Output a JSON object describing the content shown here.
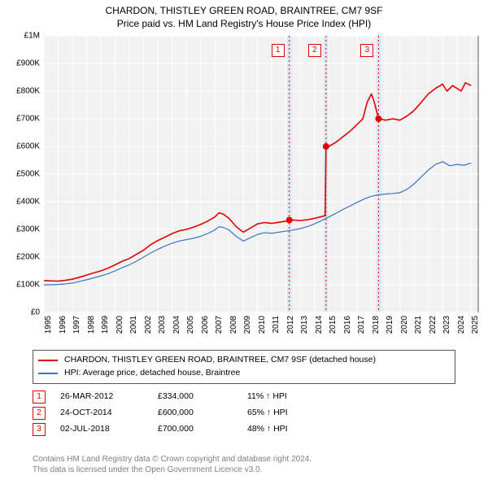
{
  "title_line1": "CHARDON, THISTLEY GREEN ROAD, BRAINTREE, CM7 9SF",
  "title_line2": "Price paid vs. HM Land Registry's House Price Index (HPI)",
  "chart": {
    "type": "line",
    "background_color": "#f2f2f2",
    "grid_color": "#ffffff",
    "plot_border_color": "#555555",
    "x_min_year": 1995,
    "x_max_year": 2025.5,
    "y_min": 0,
    "y_max": 1000000,
    "y_ticks": [
      {
        "v": 0,
        "label": "£0"
      },
      {
        "v": 100000,
        "label": "£100K"
      },
      {
        "v": 200000,
        "label": "£200K"
      },
      {
        "v": 300000,
        "label": "£300K"
      },
      {
        "v": 400000,
        "label": "£400K"
      },
      {
        "v": 500000,
        "label": "£500K"
      },
      {
        "v": 600000,
        "label": "£600K"
      },
      {
        "v": 700000,
        "label": "£700K"
      },
      {
        "v": 800000,
        "label": "£800K"
      },
      {
        "v": 900000,
        "label": "£900K"
      },
      {
        "v": 1000000,
        "label": "£1M"
      }
    ],
    "x_ticks": [
      1995,
      1996,
      1997,
      1998,
      1999,
      2000,
      2001,
      2002,
      2003,
      2004,
      2005,
      2006,
      2007,
      2008,
      2009,
      2010,
      2011,
      2012,
      2013,
      2014,
      2015,
      2016,
      2017,
      2018,
      2019,
      2020,
      2021,
      2022,
      2023,
      2024,
      2025
    ],
    "bands": [
      {
        "from": 2012.07,
        "to": 2012.4,
        "color": "#dbe7f3"
      },
      {
        "from": 2014.64,
        "to": 2014.97,
        "color": "#dbe7f3"
      },
      {
        "from": 2018.34,
        "to": 2018.67,
        "color": "#dbe7f3"
      }
    ],
    "vertical_dotted": [
      {
        "x": 2012.23,
        "color": "#e00000"
      },
      {
        "x": 2014.81,
        "color": "#e00000"
      },
      {
        "x": 2018.5,
        "color": "#e00000"
      }
    ],
    "markers": [
      {
        "n": "1",
        "x": 2012.23,
        "y": 334000
      },
      {
        "n": "2",
        "x": 2014.81,
        "y": 600000
      },
      {
        "n": "3",
        "x": 2018.5,
        "y": 700000
      }
    ],
    "marker_labels_top": [
      {
        "n": "1",
        "x": 2012.23
      },
      {
        "n": "2",
        "x": 2014.81
      },
      {
        "n": "3",
        "x": 2018.5
      }
    ],
    "series": [
      {
        "name": "CHARDON, THISTLEY GREEN ROAD, BRAINTREE, CM7 9SF (detached house)",
        "color": "#e00000",
        "width": 1.6,
        "points": [
          [
            1995.0,
            115000
          ],
          [
            1995.5,
            114000
          ],
          [
            1996.0,
            113000
          ],
          [
            1996.5,
            116000
          ],
          [
            1997.0,
            120000
          ],
          [
            1997.5,
            127000
          ],
          [
            1998.0,
            135000
          ],
          [
            1998.5,
            143000
          ],
          [
            1999.0,
            150000
          ],
          [
            1999.5,
            160000
          ],
          [
            2000.0,
            172000
          ],
          [
            2000.5,
            185000
          ],
          [
            2001.0,
            195000
          ],
          [
            2001.5,
            210000
          ],
          [
            2002.0,
            225000
          ],
          [
            2002.5,
            245000
          ],
          [
            2003.0,
            260000
          ],
          [
            2003.5,
            272000
          ],
          [
            2004.0,
            285000
          ],
          [
            2004.5,
            295000
          ],
          [
            2005.0,
            300000
          ],
          [
            2005.5,
            308000
          ],
          [
            2006.0,
            318000
          ],
          [
            2006.5,
            330000
          ],
          [
            2007.0,
            345000
          ],
          [
            2007.3,
            360000
          ],
          [
            2007.6,
            355000
          ],
          [
            2008.0,
            340000
          ],
          [
            2008.5,
            310000
          ],
          [
            2009.0,
            290000
          ],
          [
            2009.5,
            305000
          ],
          [
            2010.0,
            320000
          ],
          [
            2010.5,
            325000
          ],
          [
            2011.0,
            322000
          ],
          [
            2011.5,
            326000
          ],
          [
            2012.0,
            330000
          ],
          [
            2012.23,
            334000
          ],
          [
            2012.5,
            334000
          ],
          [
            2013.0,
            332000
          ],
          [
            2013.5,
            335000
          ],
          [
            2014.0,
            340000
          ],
          [
            2014.4,
            345000
          ],
          [
            2014.75,
            350000
          ],
          [
            2014.81,
            600000
          ],
          [
            2015.0,
            600000
          ],
          [
            2015.5,
            615000
          ],
          [
            2016.0,
            635000
          ],
          [
            2016.5,
            655000
          ],
          [
            2017.0,
            680000
          ],
          [
            2017.4,
            700000
          ],
          [
            2017.7,
            760000
          ],
          [
            2018.0,
            790000
          ],
          [
            2018.2,
            760000
          ],
          [
            2018.5,
            700000
          ],
          [
            2019.0,
            695000
          ],
          [
            2019.5,
            700000
          ],
          [
            2020.0,
            695000
          ],
          [
            2020.5,
            710000
          ],
          [
            2021.0,
            730000
          ],
          [
            2021.5,
            760000
          ],
          [
            2022.0,
            790000
          ],
          [
            2022.5,
            810000
          ],
          [
            2023.0,
            825000
          ],
          [
            2023.3,
            800000
          ],
          [
            2023.7,
            820000
          ],
          [
            2024.0,
            810000
          ],
          [
            2024.3,
            800000
          ],
          [
            2024.6,
            830000
          ],
          [
            2025.0,
            820000
          ]
        ]
      },
      {
        "name": "HPI: Average price, detached house, Braintree",
        "color": "#3a74c4",
        "width": 1.2,
        "points": [
          [
            1995.0,
            100000
          ],
          [
            1995.5,
            100000
          ],
          [
            1996.0,
            101000
          ],
          [
            1996.5,
            103000
          ],
          [
            1997.0,
            106000
          ],
          [
            1997.5,
            112000
          ],
          [
            1998.0,
            118000
          ],
          [
            1998.5,
            125000
          ],
          [
            1999.0,
            132000
          ],
          [
            1999.5,
            140000
          ],
          [
            2000.0,
            150000
          ],
          [
            2000.5,
            162000
          ],
          [
            2001.0,
            172000
          ],
          [
            2001.5,
            185000
          ],
          [
            2002.0,
            200000
          ],
          [
            2002.5,
            215000
          ],
          [
            2003.0,
            228000
          ],
          [
            2003.5,
            240000
          ],
          [
            2004.0,
            250000
          ],
          [
            2004.5,
            258000
          ],
          [
            2005.0,
            263000
          ],
          [
            2005.5,
            268000
          ],
          [
            2006.0,
            275000
          ],
          [
            2006.5,
            285000
          ],
          [
            2007.0,
            298000
          ],
          [
            2007.3,
            310000
          ],
          [
            2007.6,
            307000
          ],
          [
            2008.0,
            298000
          ],
          [
            2008.5,
            275000
          ],
          [
            2009.0,
            258000
          ],
          [
            2009.5,
            270000
          ],
          [
            2010.0,
            282000
          ],
          [
            2010.5,
            288000
          ],
          [
            2011.0,
            286000
          ],
          [
            2011.5,
            290000
          ],
          [
            2012.0,
            294000
          ],
          [
            2012.5,
            298000
          ],
          [
            2013.0,
            303000
          ],
          [
            2013.5,
            310000
          ],
          [
            2014.0,
            320000
          ],
          [
            2014.5,
            332000
          ],
          [
            2015.0,
            345000
          ],
          [
            2015.5,
            358000
          ],
          [
            2016.0,
            372000
          ],
          [
            2016.5,
            385000
          ],
          [
            2017.0,
            398000
          ],
          [
            2017.5,
            410000
          ],
          [
            2018.0,
            420000
          ],
          [
            2018.5,
            425000
          ],
          [
            2019.0,
            428000
          ],
          [
            2019.5,
            430000
          ],
          [
            2020.0,
            433000
          ],
          [
            2020.5,
            445000
          ],
          [
            2021.0,
            465000
          ],
          [
            2021.5,
            490000
          ],
          [
            2022.0,
            515000
          ],
          [
            2022.5,
            535000
          ],
          [
            2023.0,
            545000
          ],
          [
            2023.5,
            530000
          ],
          [
            2024.0,
            535000
          ],
          [
            2024.5,
            532000
          ],
          [
            2025.0,
            540000
          ]
        ]
      }
    ]
  },
  "legend": [
    {
      "color": "#e00000",
      "label": "CHARDON, THISTLEY GREEN ROAD, BRAINTREE, CM7 9SF (detached house)"
    },
    {
      "color": "#3a74c4",
      "label": "HPI: Average price, detached house, Braintree"
    }
  ],
  "transactions": [
    {
      "n": "1",
      "date": "26-MAR-2012",
      "price": "£334,000",
      "pct": "11% ↑ HPI"
    },
    {
      "n": "2",
      "date": "24-OCT-2014",
      "price": "£600,000",
      "pct": "65% ↑ HPI"
    },
    {
      "n": "3",
      "date": "02-JUL-2018",
      "price": "£700,000",
      "pct": "48% ↑ HPI"
    }
  ],
  "footer_line1": "Contains HM Land Registry data © Crown copyright and database right 2024.",
  "footer_line2": "This data is licensed under the Open Government Licence v3.0.",
  "marker_color": "#e00000"
}
